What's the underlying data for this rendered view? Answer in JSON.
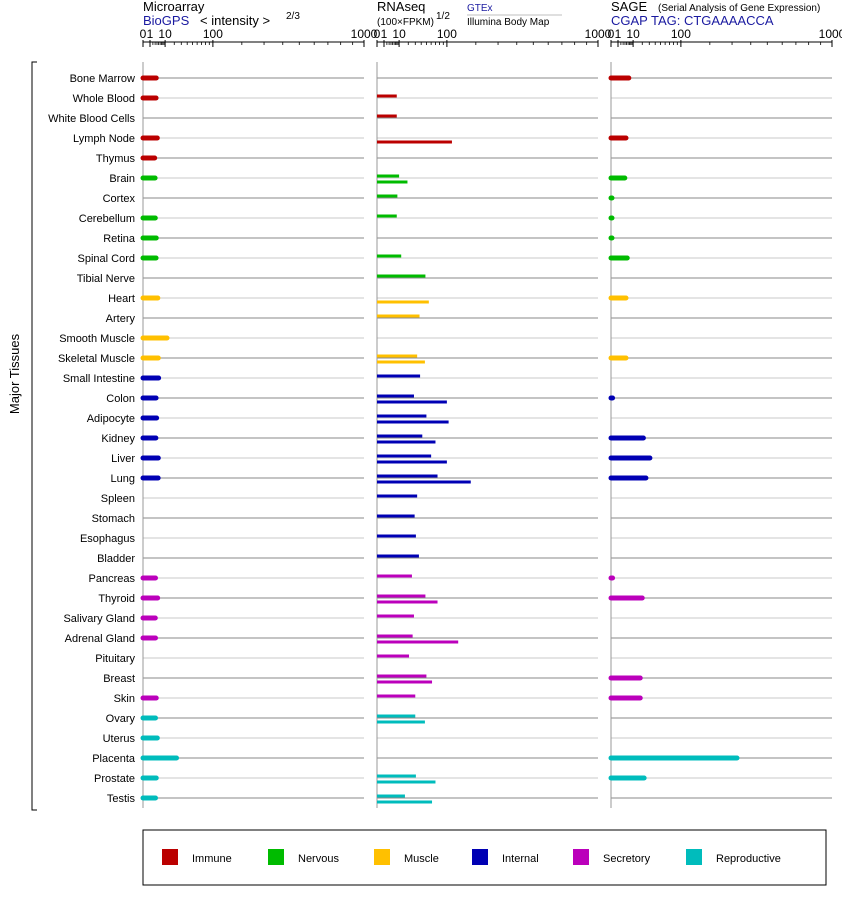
{
  "panels": {
    "microarray": {
      "title": "Microarray",
      "source": "BioGPS",
      "metric": "< intensity >",
      "exponent": "2/3"
    },
    "rnaseq": {
      "title": "RNAseq",
      "metric": "(100×FPKM)",
      "exponent": "1/2",
      "source_top": "GTEx",
      "source_bottom": "Illumina Body Map"
    },
    "sage": {
      "title": "SAGE",
      "subtitle": "(Serial Analysis of Gene Expression)",
      "tag": "CGAP TAG: CTGAAAACCA"
    }
  },
  "y_axis_label": "Major Tissues",
  "ticks": [
    "0",
    "1",
    "10",
    "100",
    "1000"
  ],
  "colors": {
    "Immune": "#bb0000",
    "Nervous": "#00bb00",
    "Muscle": "#ffc000",
    "Internal": "#0000b4",
    "Secretory": "#bb00bb",
    "Reproductive": "#00bcbc"
  },
  "legend": [
    "Immune",
    "Nervous",
    "Muscle",
    "Internal",
    "Secretory",
    "Reproductive"
  ],
  "chart_data": [
    {
      "type": "bar",
      "panel": "Microarray (BioGPS)",
      "scale": "sqrt",
      "xlim": [
        0,
        1000
      ],
      "categories": [
        "Bone Marrow",
        "Whole Blood",
        "White Blood Cells",
        "Lymph Node",
        "Thymus",
        "Brain",
        "Cortex",
        "Cerebellum",
        "Retina",
        "Spinal Cord",
        "Tibial Nerve",
        "Heart",
        "Artery",
        "Smooth Muscle",
        "Skeletal Muscle",
        "Small Intestine",
        "Colon",
        "Adipocyte",
        "Kidney",
        "Liver",
        "Lung",
        "Spleen",
        "Stomach",
        "Esophagus",
        "Bladder",
        "Pancreas",
        "Thyroid",
        "Salivary Gland",
        "Adrenal Gland",
        "Pituitary",
        "Breast",
        "Skin",
        "Ovary",
        "Uterus",
        "Placenta",
        "Prostate",
        "Testis"
      ],
      "groups": [
        "Immune",
        "Immune",
        "Immune",
        "Immune",
        "Immune",
        "Nervous",
        "Nervous",
        "Nervous",
        "Nervous",
        "Nervous",
        "Nervous",
        "Muscle",
        "Muscle",
        "Muscle",
        "Muscle",
        "Internal",
        "Internal",
        "Internal",
        "Internal",
        "Internal",
        "Internal",
        "Internal",
        "Internal",
        "Internal",
        "Internal",
        "Secretory",
        "Secretory",
        "Secretory",
        "Secretory",
        "Secretory",
        "Secretory",
        "Secretory",
        "Reproductive",
        "Reproductive",
        "Reproductive",
        "Reproductive",
        "Reproductive"
      ],
      "values": [
        3.6,
        3.5,
        null,
        4.2,
        2.8,
        3.0,
        null,
        3.1,
        3.6,
        3.5,
        null,
        4.5,
        null,
        11.8,
        4.8,
        5.0,
        3.5,
        3.8,
        3.4,
        4.8,
        4.7,
        null,
        null,
        null,
        null,
        3.2,
        4.4,
        3.1,
        3.2,
        null,
        null,
        3.6,
        3.2,
        4.2,
        23,
        3.6,
        3.2
      ]
    },
    {
      "type": "bar",
      "panel": "RNAseq",
      "scale": "sqrt",
      "xlim": [
        0,
        1000
      ],
      "series_names": [
        "GTEx",
        "Illumina Body Map"
      ],
      "categories": [
        "Bone Marrow",
        "Whole Blood",
        "White Blood Cells",
        "Lymph Node",
        "Thymus",
        "Brain",
        "Cortex",
        "Cerebellum",
        "Retina",
        "Spinal Cord",
        "Tibial Nerve",
        "Heart",
        "Artery",
        "Smooth Muscle",
        "Skeletal Muscle",
        "Small Intestine",
        "Colon",
        "Adipocyte",
        "Kidney",
        "Liver",
        "Lung",
        "Spleen",
        "Stomach",
        "Esophagus",
        "Bladder",
        "Pancreas",
        "Thyroid",
        "Salivary Gland",
        "Adrenal Gland",
        "Pituitary",
        "Breast",
        "Skin",
        "Ovary",
        "Uterus",
        "Placenta",
        "Prostate",
        "Testis"
      ],
      "groups": [
        "Immune",
        "Immune",
        "Immune",
        "Immune",
        "Immune",
        "Nervous",
        "Nervous",
        "Nervous",
        "Nervous",
        "Nervous",
        "Nervous",
        "Muscle",
        "Muscle",
        "Muscle",
        "Muscle",
        "Internal",
        "Internal",
        "Internal",
        "Internal",
        "Internal",
        "Internal",
        "Internal",
        "Internal",
        "Internal",
        "Internal",
        "Secretory",
        "Secretory",
        "Secretory",
        "Secretory",
        "Secretory",
        "Secretory",
        "Secretory",
        "Reproductive",
        "Reproductive",
        "Reproductive",
        "Reproductive",
        "Reproductive"
      ],
      "gtex": [
        null,
        8,
        8,
        null,
        null,
        10,
        8.5,
        8,
        null,
        12,
        48,
        null,
        37,
        null,
        33,
        38,
        28,
        50,
        42,
        60,
        75,
        33,
        29,
        31,
        36,
        25,
        48,
        28,
        26,
        21,
        50,
        30,
        30,
        null,
        null,
        31,
        16
      ],
      "ibm": [
        null,
        null,
        null,
        115,
        null,
        19,
        null,
        null,
        null,
        null,
        null,
        55,
        null,
        null,
        47,
        null,
        100,
        105,
        70,
        100,
        180,
        null,
        null,
        null,
        null,
        null,
        75,
        null,
        135,
        null,
        62,
        null,
        47,
        null,
        null,
        70,
        62
      ]
    },
    {
      "type": "bar",
      "panel": "SAGE",
      "scale": "sqrt",
      "xlim": [
        0,
        1000
      ],
      "categories": [
        "Bone Marrow",
        "Whole Blood",
        "White Blood Cells",
        "Lymph Node",
        "Thymus",
        "Brain",
        "Cortex",
        "Cerebellum",
        "Retina",
        "Spinal Cord",
        "Tibial Nerve",
        "Heart",
        "Artery",
        "Smooth Muscle",
        "Skeletal Muscle",
        "Small Intestine",
        "Colon",
        "Adipocyte",
        "Kidney",
        "Liver",
        "Lung",
        "Spleen",
        "Stomach",
        "Esophagus",
        "Bladder",
        "Pancreas",
        "Thyroid",
        "Salivary Gland",
        "Adrenal Gland",
        "Pituitary",
        "Breast",
        "Skin",
        "Ovary",
        "Uterus",
        "Placenta",
        "Prostate",
        "Testis"
      ],
      "groups": [
        "Immune",
        "Immune",
        "Immune",
        "Immune",
        "Immune",
        "Nervous",
        "Nervous",
        "Nervous",
        "Nervous",
        "Nervous",
        "Nervous",
        "Muscle",
        "Muscle",
        "Muscle",
        "Muscle",
        "Internal",
        "Internal",
        "Internal",
        "Internal",
        "Internal",
        "Internal",
        "Internal",
        "Internal",
        "Internal",
        "Internal",
        "Secretory",
        "Secretory",
        "Secretory",
        "Secretory",
        "Secretory",
        "Secretory",
        "Secretory",
        "Reproductive",
        "Reproductive",
        "Reproductive",
        "Reproductive",
        "Reproductive"
      ],
      "values": [
        6.5,
        null,
        null,
        4.6,
        null,
        3.9,
        0.02,
        0.02,
        0.02,
        5.4,
        null,
        4.6,
        null,
        null,
        4.6,
        null,
        0.05,
        null,
        21.5,
        31,
        25,
        null,
        null,
        null,
        null,
        0.05,
        20,
        null,
        null,
        null,
        17.5,
        17.5,
        null,
        null,
        325,
        22.5,
        null
      ]
    }
  ]
}
